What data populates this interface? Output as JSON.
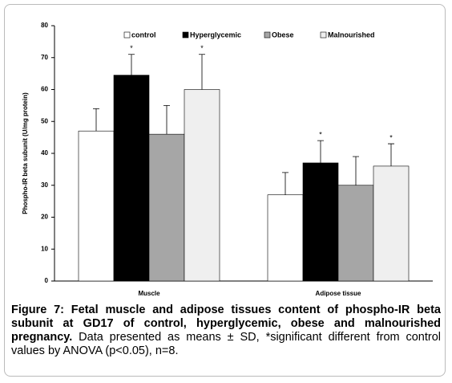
{
  "chart_data": {
    "type": "bar",
    "ylabel": "Phospho-IR beta subunit (U/mg protein)",
    "categories": [
      "Muscle",
      "Adipose tissue"
    ],
    "series": [
      {
        "name": "control",
        "color": "#ffffff",
        "values": [
          47,
          27
        ],
        "errors": [
          7,
          7
        ],
        "significance": [
          null,
          null
        ]
      },
      {
        "name": "Hyperglycemic",
        "color": "#000000",
        "values": [
          64.5,
          37
        ],
        "errors": [
          6.5,
          7
        ],
        "significance": [
          "*",
          "*"
        ]
      },
      {
        "name": "Obese",
        "color": "#a6a6a6",
        "values": [
          46,
          30
        ],
        "errors": [
          9,
          9
        ],
        "significance": [
          null,
          null
        ]
      },
      {
        "name": "Malnourished",
        "color": "#efefef",
        "values": [
          60,
          36
        ],
        "errors": [
          11,
          7
        ],
        "significance": [
          "*",
          "*"
        ]
      }
    ],
    "ylim": [
      0,
      80
    ],
    "yticks": [
      0,
      10,
      20,
      30,
      40,
      50,
      60,
      70,
      80
    ],
    "grid": false,
    "legend": "top"
  },
  "caption": {
    "bold": "Figure 7: Fetal muscle and adipose tissues content of phospho-IR beta subunit at GD17 of control, hyperglycemic, obese and malnourished pregnancy.",
    "text": "Data presented as means ± SD, *significant different from control values by ANOVA (p<0.05), n=8."
  }
}
